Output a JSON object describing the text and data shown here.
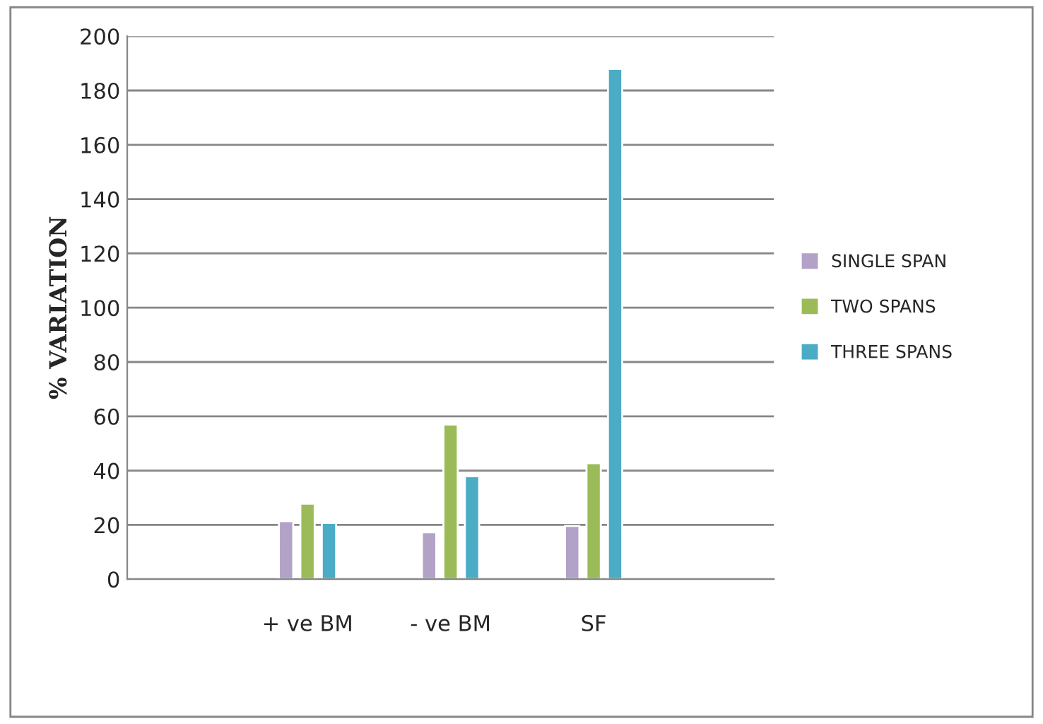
{
  "chart_data": {
    "type": "bar",
    "ylabel": "% VARIATION",
    "categories": [
      "+ ve BM",
      "- ve BM",
      "SF"
    ],
    "series": [
      {
        "name": "SINGLE SPAN",
        "color": "#b3a2c7",
        "values": [
          21.4,
          17.3,
          19.6
        ]
      },
      {
        "name": "TWO SPANS",
        "color": "#9bbb59",
        "values": [
          27.8,
          57,
          42.7
        ]
      },
      {
        "name": "THREE SPANS",
        "color": "#4bacc6",
        "values": [
          20.7,
          37.9,
          187.9
        ]
      }
    ],
    "ylim": [
      0,
      200
    ],
    "yticks": [
      0,
      20,
      40,
      60,
      80,
      100,
      120,
      140,
      160,
      180,
      200
    ],
    "grid": "y",
    "legend": "right"
  }
}
